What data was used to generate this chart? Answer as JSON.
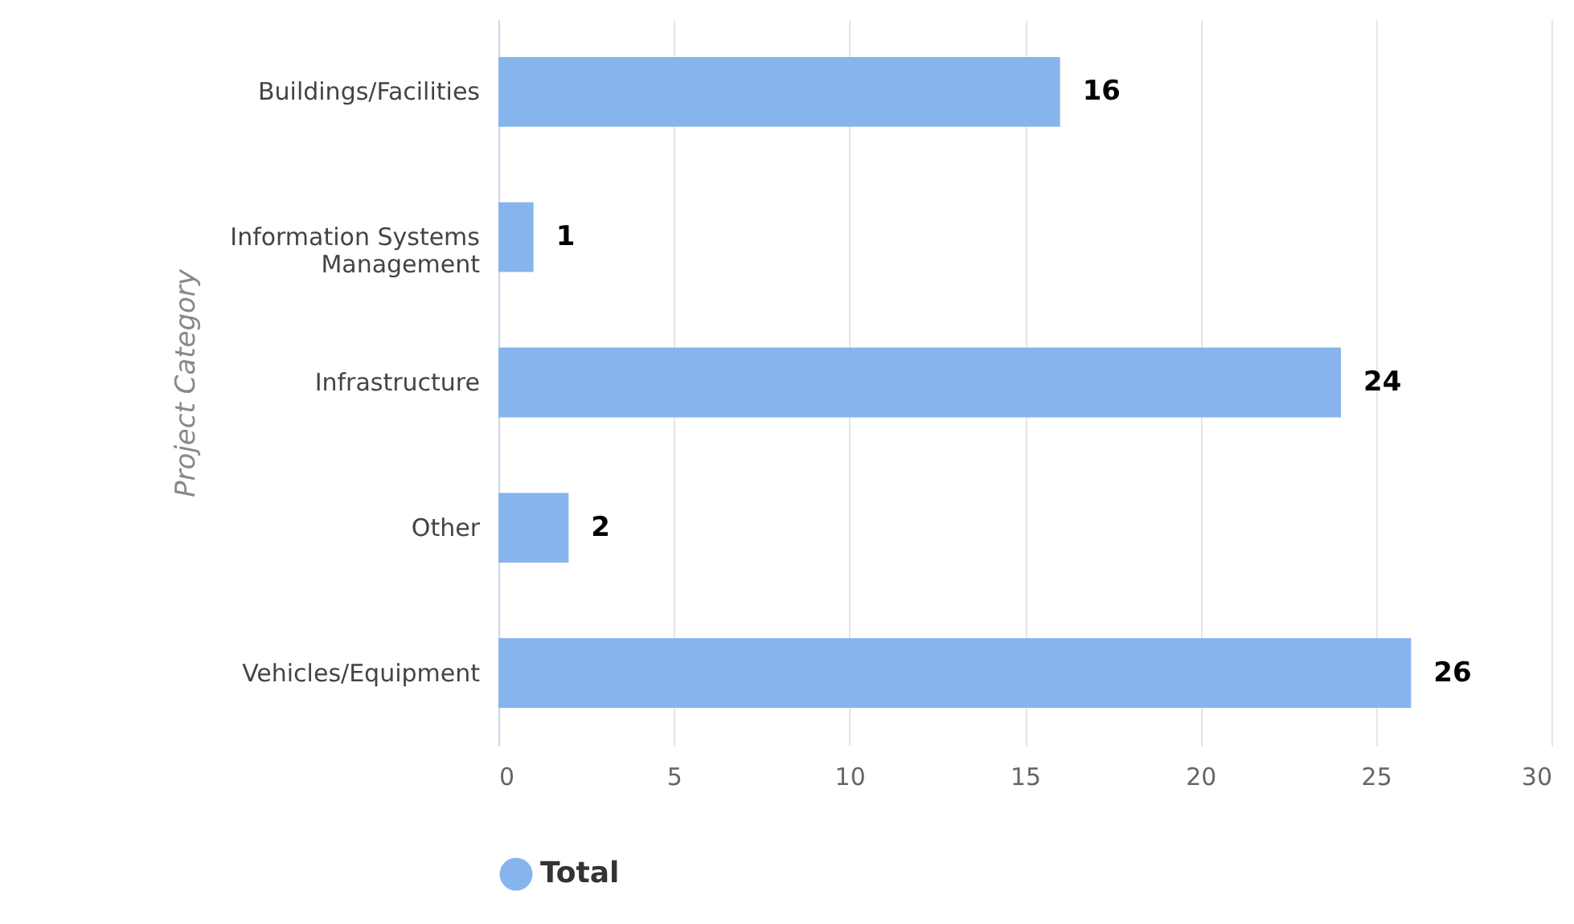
{
  "chart_data": {
    "type": "bar",
    "orientation": "horizontal",
    "ylabel": "Project Category",
    "categories": [
      "Buildings/Facilities",
      "Information Systems Management",
      "Infrastructure",
      "Other",
      "Vehicles/Equipment"
    ],
    "series": [
      {
        "name": "Total",
        "color": "#87b4ec",
        "values": [
          16,
          1,
          24,
          2,
          26
        ]
      }
    ],
    "xlim": [
      0,
      30
    ],
    "xticks": [
      0,
      5,
      10,
      15,
      20,
      25,
      30
    ],
    "grid": "x",
    "legend": "bottom",
    "data_labels": true
  }
}
